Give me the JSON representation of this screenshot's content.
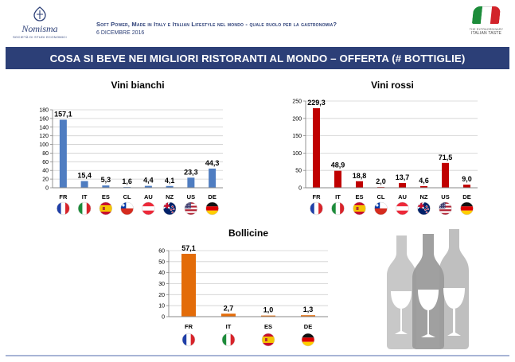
{
  "header": {
    "logo_name": "Nomisma",
    "logo_sub": "SOCIETÀ DI STUDI ECONOMICI",
    "title": "Soft Power, Made in Italy e Italian Lifestyle nel mondo - quale ruolo per la gastronomia?",
    "date": "6 DICEMBRE 2016",
    "brand_small": "THE EXTRAORDINARY",
    "brand_big": "ITALIAN TASTE"
  },
  "banner": {
    "title": "COSA SI BEVE NEI MIGLIORI RISTORANTI AL MONDO – OFFERTA (# BOTTIGLIE)"
  },
  "colors": {
    "navy": "#2c3f77",
    "bianchi": "#4f7dc1",
    "rossi": "#c00000",
    "bollicine": "#e36c09",
    "bottle_light": "#c8c8c8",
    "bottle_mid": "#9b9b9b",
    "bottle_dark": "#bfbfbf"
  },
  "chart_data": [
    {
      "type": "bar",
      "title": "Vini bianchi",
      "categories": [
        "FR",
        "IT",
        "ES",
        "CL",
        "AU",
        "NZ",
        "US",
        "DE"
      ],
      "values": [
        157.1,
        15.4,
        5.3,
        1.6,
        4.4,
        4.1,
        23.3,
        44.3
      ],
      "data_labels": [
        "157,1",
        "15,4",
        "5,3",
        "1,6",
        "4,4",
        "4,1",
        "23,3",
        "44,3"
      ],
      "ylim": [
        0,
        180
      ],
      "yticks": [
        0,
        20,
        40,
        60,
        80,
        100,
        120,
        140,
        160,
        180
      ],
      "grid": true,
      "color": "#4f7dc1"
    },
    {
      "type": "bar",
      "title": "Vini rossi",
      "categories": [
        "FR",
        "IT",
        "ES",
        "CL",
        "AU",
        "NZ",
        "US",
        "DE"
      ],
      "values": [
        229.3,
        48.9,
        18.8,
        2.0,
        13.7,
        4.6,
        71.5,
        9.0
      ],
      "data_labels": [
        "229,3",
        "48,9",
        "18,8",
        "2,0",
        "13,7",
        "4,6",
        "71,5",
        "9,0"
      ],
      "ylim": [
        0,
        250
      ],
      "yticks": [
        0,
        50,
        100,
        150,
        200,
        250
      ],
      "grid": true,
      "color": "#c00000"
    },
    {
      "type": "bar",
      "title": "Bollicine",
      "categories": [
        "FR",
        "IT",
        "ES",
        "DE"
      ],
      "values": [
        57.1,
        2.7,
        1.0,
        1.3
      ],
      "data_labels": [
        "57,1",
        "2,7",
        "1,0",
        "1,3"
      ],
      "ylim": [
        0,
        60
      ],
      "yticks": [
        0,
        10,
        20,
        30,
        40,
        50,
        60
      ],
      "grid": true,
      "color": "#e36c09"
    }
  ],
  "flags": {
    "FR": "flag-france-icon",
    "IT": "flag-italy-icon",
    "ES": "flag-spain-icon",
    "CL": "flag-chile-icon",
    "AU": "flag-austria-icon",
    "NZ": "flag-new-zealand-icon",
    "US": "flag-usa-icon",
    "DE": "flag-germany-icon"
  }
}
